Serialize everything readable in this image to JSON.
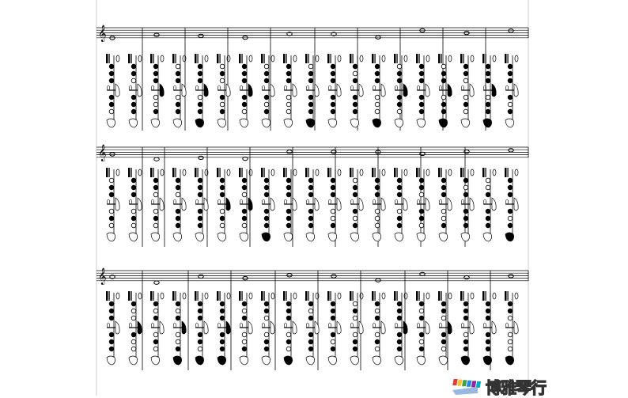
{
  "watermark": {
    "text": "博雅琴行",
    "colors": [
      "#e53935",
      "#fbc02d",
      "#43a047",
      "#1e88e5",
      "#8e24aa",
      "#00acc1"
    ]
  },
  "colors": {
    "ink": "#000000",
    "frame": "#cccccc"
  }
}
